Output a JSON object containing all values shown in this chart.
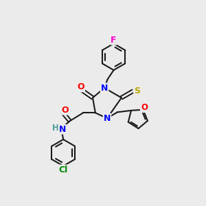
{
  "background_color": "#ebebeb",
  "bond_color": "#1a1a1a",
  "atom_colors": {
    "N": "#0000ff",
    "O": "#ff0000",
    "S": "#bbaa00",
    "F": "#ff00cc",
    "Cl": "#008800",
    "H": "#4a9a9a",
    "C": "#1a1a1a"
  },
  "figsize": [
    3.0,
    3.0
  ],
  "dpi": 100
}
